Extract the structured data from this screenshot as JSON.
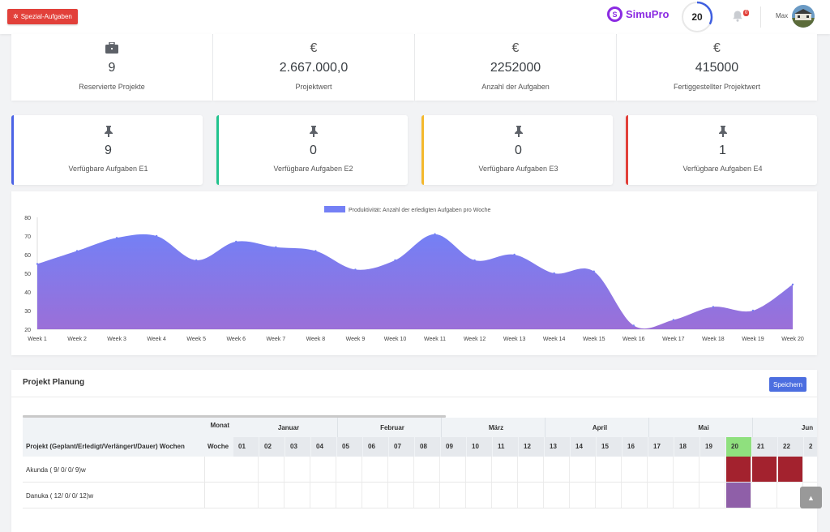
{
  "header": {
    "special_button": "Spezial-Aufgaben",
    "brand_name": "SimuPro",
    "score": "20",
    "score_progress": 0.33,
    "notification_count": "0",
    "user_name": "Max"
  },
  "stats_top": [
    {
      "icon": "briefcase-icon",
      "value": "9",
      "label": "Reservierte Projekte"
    },
    {
      "icon": "euro-icon",
      "value": "2.667.000,0",
      "label": "Projektwert"
    },
    {
      "icon": "euro-icon",
      "value": "2252000",
      "label": "Anzahl der Aufgaben"
    },
    {
      "icon": "euro-icon",
      "value": "415000",
      "label": "Fertiggestellter Projektwert"
    }
  ],
  "euro_symbol": "€",
  "stats_tasks": [
    {
      "icon": "pin-icon",
      "value": "9",
      "label": "Verfügbare Aufgaben E1",
      "color": "#4b63e6"
    },
    {
      "icon": "pin-icon",
      "value": "0",
      "label": "Verfügbare Aufgaben E2",
      "color": "#22c38e"
    },
    {
      "icon": "pin-icon",
      "value": "0",
      "label": "Verfügbare Aufgaben E3",
      "color": "#f4b82c"
    },
    {
      "icon": "pin-icon",
      "value": "1",
      "label": "Verfügbare Aufgaben E4",
      "color": "#e2403a"
    }
  ],
  "chart_data": {
    "type": "area",
    "legend": "Produktivität: Anzahl der erledigten Aufgaben pro Woche",
    "legend_position": "top",
    "categories": [
      "Week 1",
      "Week 2",
      "Week 3",
      "Week 4",
      "Week 5",
      "Week 6",
      "Week 7",
      "Week 8",
      "Week 9",
      "Week 10",
      "Week 11",
      "Week 12",
      "Week 13",
      "Week 14",
      "Week 15",
      "Week 16",
      "Week 17",
      "Week 18",
      "Week 19",
      "Week 20"
    ],
    "values": [
      55,
      62,
      69,
      70,
      57,
      67,
      64,
      62,
      52,
      57,
      71,
      57,
      60,
      50,
      51,
      22,
      25,
      32,
      30,
      44
    ],
    "ylim": [
      20,
      80
    ],
    "yticks": [
      20,
      30,
      40,
      50,
      60,
      70,
      80
    ],
    "colors": {
      "top": "#7480f5",
      "bottom": "#9b6fd8"
    }
  },
  "planning": {
    "title": "Projekt Planung",
    "save_label": "Speichern",
    "monat_label": "Monat",
    "woche_label": "Woche",
    "project_col_label": "Projekt (Geplant/Erledigt/Verlängert/Dauer) Wochen",
    "months": [
      "Januar",
      "Februar",
      "März",
      "April",
      "Mai",
      "Jun"
    ],
    "weeks": [
      "01",
      "02",
      "03",
      "04",
      "05",
      "06",
      "07",
      "08",
      "09",
      "10",
      "11",
      "12",
      "13",
      "14",
      "15",
      "16",
      "17",
      "18",
      "19",
      "20",
      "21",
      "22",
      "2"
    ],
    "current_week_color": "#8fe07e",
    "rows": [
      {
        "name": "Akunda ( 9/ 0/ 0/ 9)w",
        "color": "#a3222e"
      },
      {
        "name": "Danuka ( 12/ 0/ 0/ 12)w",
        "color": "#8f5fa8"
      }
    ]
  }
}
